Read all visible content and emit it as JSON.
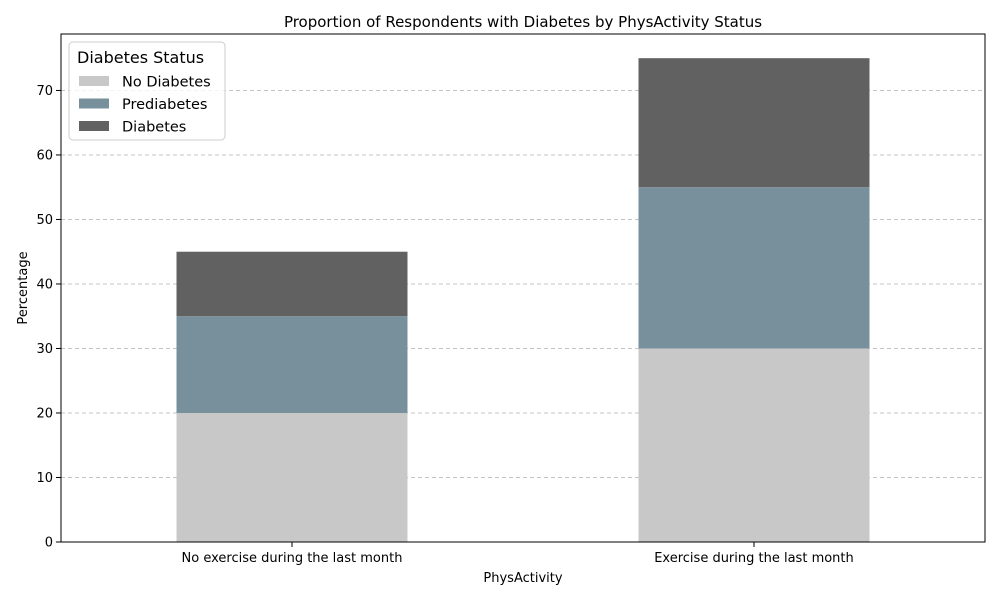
{
  "chart_data": {
    "type": "bar",
    "stacked": true,
    "title": "Proportion of Respondents with Diabetes by PhysActivity Status",
    "xlabel": "PhysActivity",
    "ylabel": "Percentage",
    "categories": [
      "No exercise during the last month",
      "Exercise during the last month"
    ],
    "series": [
      {
        "name": "No Diabetes",
        "values": [
          20,
          30
        ],
        "color": "#c8c8c8"
      },
      {
        "name": "Prediabetes",
        "values": [
          15,
          25
        ],
        "color": "#78909c"
      },
      {
        "name": "Diabetes",
        "values": [
          10,
          20
        ],
        "color": "#616161"
      }
    ],
    "ylim": [
      0,
      78.75
    ],
    "yticks": [
      0,
      10,
      20,
      30,
      40,
      50,
      60,
      70
    ],
    "grid": "y-dashed",
    "legend": {
      "title": "Diabetes Status",
      "placement": "top-left"
    }
  }
}
